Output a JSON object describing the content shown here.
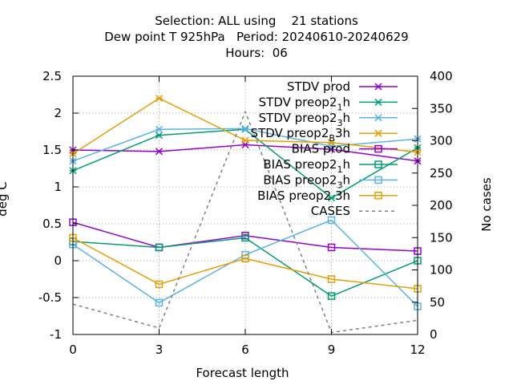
{
  "chart_data": {
    "type": "line",
    "title_lines": [
      "Selection: ALL using    21 stations",
      "Dew point T 925hPa   Period: 20240610-20240629",
      "Hours:  06"
    ],
    "xlabel": "Forecast length",
    "ylabel": "deg C",
    "y2label": "No cases",
    "x": [
      0,
      3,
      6,
      9,
      12
    ],
    "xlim": [
      0,
      12
    ],
    "ylim": [
      -1,
      2.5
    ],
    "y2lim": [
      0,
      400
    ],
    "xticks": [
      "0",
      "3",
      "6",
      "9",
      "12"
    ],
    "yticks": [
      "-1",
      "-0.5",
      "0",
      "0.5",
      "1",
      "1.5",
      "2",
      "2.5"
    ],
    "y2ticks": [
      "0",
      "50",
      "100",
      "150",
      "200",
      "250",
      "300",
      "350",
      "400"
    ],
    "grid": true,
    "legend_position": "top-right",
    "series": [
      {
        "name": "STDV prod",
        "legend": {
          "main": "STDV prod",
          "sub": "",
          "sup": "",
          "tail": ""
        },
        "color": "#9400d3",
        "marker": "x",
        "dash": "solid",
        "axis": "y",
        "values": [
          1.5,
          1.48,
          1.57,
          1.51,
          1.35
        ]
      },
      {
        "name": "STDV preop2_1h",
        "legend": {
          "main": "STDV preop2",
          "sub": "1",
          "sup": "",
          "tail": "h"
        },
        "color": "#009e73",
        "marker": "x",
        "dash": "solid",
        "axis": "y",
        "values": [
          1.22,
          1.7,
          1.78,
          0.85,
          1.53
        ]
      },
      {
        "name": "STDV preop2_3h",
        "legend": {
          "main": "STDV preop2",
          "sub": "3",
          "sup": "",
          "tail": "h"
        },
        "color": "#56b4e9",
        "marker": "x",
        "dash": "solid",
        "axis": "y",
        "values": [
          1.35,
          1.78,
          1.79,
          1.55,
          1.65
        ]
      },
      {
        "name": "STDV preop2_B3h",
        "legend": {
          "main": "STDV preop2",
          "sub": "B",
          "sup": "",
          "tail": "3h"
        },
        "color": "#e69f00",
        "marker": "x",
        "dash": "solid",
        "axis": "y",
        "values": [
          1.45,
          2.2,
          1.63,
          1.6,
          1.47
        ]
      },
      {
        "name": "BIAS prod",
        "legend": {
          "main": "BIAS prod",
          "sub": "",
          "sup": "",
          "tail": ""
        },
        "color": "#9400d3",
        "marker": "square",
        "dash": "solid",
        "axis": "y",
        "values": [
          0.52,
          0.18,
          0.34,
          0.18,
          0.13
        ]
      },
      {
        "name": "BIAS preop2_1h",
        "legend": {
          "main": "BIAS preop2",
          "sub": "1",
          "sup": "",
          "tail": "h"
        },
        "color": "#009e73",
        "marker": "square",
        "dash": "solid",
        "axis": "y",
        "values": [
          0.26,
          0.18,
          0.31,
          -0.48,
          0.0
        ]
      },
      {
        "name": "BIAS preop2_3h",
        "legend": {
          "main": "BIAS preop2",
          "sub": "3",
          "sup": "",
          "tail": "h"
        },
        "color": "#56b4e9",
        "marker": "square",
        "dash": "solid",
        "axis": "y",
        "values": [
          0.22,
          -0.57,
          0.08,
          0.55,
          -0.62
        ]
      },
      {
        "name": "BIAS preop2_3h",
        "legend": {
          "main": "BIAS preop2",
          "sub": "",
          "sup": "",
          "tail": " 3h"
        },
        "color": "#e69f00",
        "marker": "square",
        "dash": "solid",
        "axis": "y",
        "values": [
          0.31,
          -0.32,
          0.03,
          -0.25,
          -0.38
        ]
      },
      {
        "name": "CASES",
        "legend": {
          "main": "CASES",
          "sub": "",
          "sup": "",
          "tail": ""
        },
        "color": "#808080",
        "marker": "none",
        "dash": "dashed",
        "axis": "y2",
        "values": [
          47,
          10,
          345,
          3,
          22
        ]
      }
    ]
  }
}
